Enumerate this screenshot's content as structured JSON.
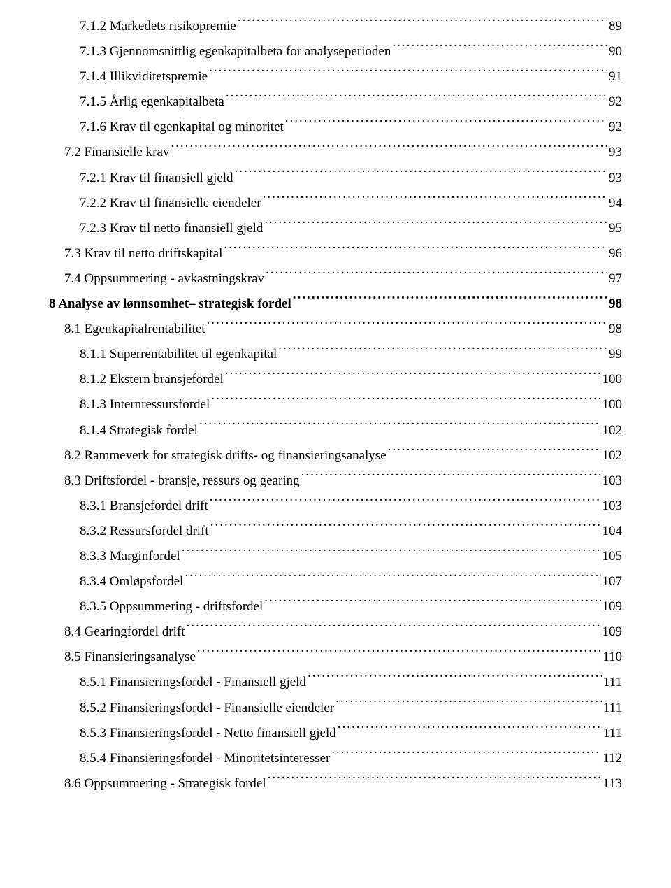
{
  "toc": [
    {
      "label": "7.1.2 Markedets risikopremie",
      "page": "89",
      "indent": 2,
      "bold": false
    },
    {
      "label": "7.1.3 Gjennomsnittlig egenkapitalbeta for analyseperioden",
      "page": "90",
      "indent": 2,
      "bold": false
    },
    {
      "label": "7.1.4 Illikviditetspremie",
      "page": "91",
      "indent": 2,
      "bold": false
    },
    {
      "label": "7.1.5 Årlig egenkapitalbeta",
      "page": "92",
      "indent": 2,
      "bold": false
    },
    {
      "label": "7.1.6 Krav til egenkapital og minoritet",
      "page": "92",
      "indent": 2,
      "bold": false
    },
    {
      "label": "7.2 Finansielle krav",
      "page": "93",
      "indent": 1,
      "bold": false
    },
    {
      "label": "7.2.1 Krav til finansiell gjeld",
      "page": "93",
      "indent": 2,
      "bold": false
    },
    {
      "label": "7.2.2 Krav til finansielle eiendeler",
      "page": "94",
      "indent": 2,
      "bold": false
    },
    {
      "label": "7.2.3 Krav til netto finansiell gjeld",
      "page": "95",
      "indent": 2,
      "bold": false
    },
    {
      "label": "7.3 Krav til netto driftskapital",
      "page": "96",
      "indent": 1,
      "bold": false
    },
    {
      "label": "7.4 Oppsummering - avkastningskrav",
      "page": "97",
      "indent": 1,
      "bold": false
    },
    {
      "label": "8 Analyse av lønnsomhet– strategisk fordel",
      "page": "98",
      "indent": 0,
      "bold": true
    },
    {
      "label": "8.1 Egenkapitalrentabilitet",
      "page": "98",
      "indent": 1,
      "bold": false
    },
    {
      "label": "8.1.1 Superrentabilitet til egenkapital",
      "page": "99",
      "indent": 2,
      "bold": false
    },
    {
      "label": "8.1.2 Ekstern bransjefordel",
      "page": "100",
      "indent": 2,
      "bold": false
    },
    {
      "label": "8.1.3 Internressursfordel",
      "page": "100",
      "indent": 2,
      "bold": false
    },
    {
      "label": "8.1.4 Strategisk fordel",
      "page": "102",
      "indent": 2,
      "bold": false
    },
    {
      "label": "8.2 Rammeverk for strategisk drifts- og finansieringsanalyse",
      "page": "102",
      "indent": 1,
      "bold": false
    },
    {
      "label": "8.3 Driftsfordel - bransje, ressurs og gearing",
      "page": "103",
      "indent": 1,
      "bold": false
    },
    {
      "label": "8.3.1 Bransjefordel drift",
      "page": "103",
      "indent": 2,
      "bold": false
    },
    {
      "label": "8.3.2 Ressursfordel drift",
      "page": "104",
      "indent": 2,
      "bold": false
    },
    {
      "label": "8.3.3 Marginfordel",
      "page": "105",
      "indent": 2,
      "bold": false
    },
    {
      "label": "8.3.4 Omløpsfordel",
      "page": "107",
      "indent": 2,
      "bold": false
    },
    {
      "label": "8.3.5 Oppsummering - driftsfordel",
      "page": "109",
      "indent": 2,
      "bold": false
    },
    {
      "label": "8.4 Gearingfordel drift",
      "page": "109",
      "indent": 1,
      "bold": false
    },
    {
      "label": "8.5 Finansieringsanalyse",
      "page": "110",
      "indent": 1,
      "bold": false
    },
    {
      "label": "8.5.1 Finansieringsfordel - Finansiell gjeld",
      "page": "111",
      "indent": 2,
      "bold": false
    },
    {
      "label": "8.5.2 Finansieringsfordel - Finansielle eiendeler",
      "page": "111",
      "indent": 2,
      "bold": false
    },
    {
      "label": "8.5.3 Finansieringsfordel - Netto finansiell gjeld",
      "page": "111",
      "indent": 2,
      "bold": false
    },
    {
      "label": "8.5.4 Finansieringsfordel - Minoritetsinteresser",
      "page": "112",
      "indent": 2,
      "bold": false
    },
    {
      "label": "8.6 Oppsummering - Strategisk fordel",
      "page": "113",
      "indent": 1,
      "bold": false
    }
  ]
}
